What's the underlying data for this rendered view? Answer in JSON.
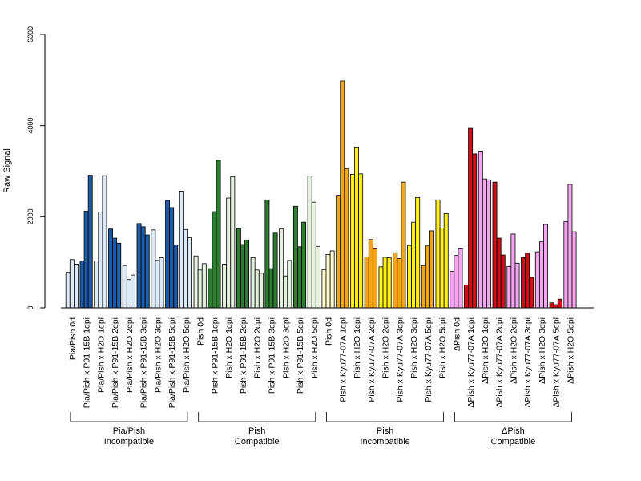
{
  "chart_data": {
    "type": "bar",
    "title": "",
    "xlabel": "",
    "ylabel": "Raw Signal",
    "ylim": [
      0,
      6000
    ],
    "yticks": [
      0,
      2000,
      4000,
      6000
    ],
    "grid": false,
    "colors": {
      "light_blue": "#dce9f7",
      "dark_blue": "#1f5ca8",
      "light_green": "#e5f2e0",
      "dark_green": "#2e7d32",
      "light_yellow": "#fffbcc",
      "orange": "#f5a51a",
      "yellow": "#ffef1e",
      "pink": "#f4a6f0",
      "red": "#d10d16"
    },
    "categories": [
      {
        "label": "Pia/Pish 0d",
        "color": "light_blue",
        "values": [
          780,
          1060,
          960
        ]
      },
      {
        "label": "Pia/Pish x P91-15B 1dpi",
        "color": "dark_blue",
        "values": [
          1030,
          2120,
          2910
        ]
      },
      {
        "label": "Pia/Pish x H2O 1dpi",
        "color": "light_blue",
        "values": [
          1030,
          2100,
          2900
        ]
      },
      {
        "label": "Pia/Pish x P91-15B 2dpi",
        "color": "dark_blue",
        "values": [
          1730,
          1530,
          1420
        ]
      },
      {
        "label": "Pia/Pish x H2O 2dpi",
        "color": "light_blue",
        "values": [
          930,
          620,
          720
        ]
      },
      {
        "label": "Pia/Pish x P91-15B 3dpi",
        "color": "dark_blue",
        "values": [
          1850,
          1780,
          1600
        ]
      },
      {
        "label": "Pia/Pish x H2O 3dpi",
        "color": "light_blue",
        "values": [
          1710,
          1040,
          1100
        ]
      },
      {
        "label": "Pia/Pish x P91-15B 5dpi",
        "color": "dark_blue",
        "values": [
          2360,
          2200,
          1380
        ]
      },
      {
        "label": "Pia/Pish x H2O 5dpi",
        "color": "light_blue",
        "values": [
          2560,
          1720,
          1540
        ]
      },
      {
        "label": "Pish 0d",
        "color": "light_green",
        "values": [
          1140,
          830,
          970
        ]
      },
      {
        "label": "Pish x P91-15B 1dpi",
        "color": "dark_green",
        "values": [
          860,
          2110,
          3240
        ]
      },
      {
        "label": "Pish x H2O 1dpi",
        "color": "light_green",
        "values": [
          960,
          2410,
          2880
        ]
      },
      {
        "label": "Pish x P91-15B 2dpi",
        "color": "dark_green",
        "values": [
          1740,
          1390,
          1490
        ]
      },
      {
        "label": "Pish x H2O 2dpi",
        "color": "light_green",
        "values": [
          1100,
          830,
          760
        ]
      },
      {
        "label": "Pish x P91-15B 3dpi",
        "color": "dark_green",
        "values": [
          2370,
          860,
          1640
        ]
      },
      {
        "label": "Pish x H2O 3dpi",
        "color": "light_green",
        "values": [
          1730,
          700,
          1040
        ]
      },
      {
        "label": "Pish x P91-15B 5dpi",
        "color": "dark_green",
        "values": [
          2230,
          1340,
          1880
        ]
      },
      {
        "label": "Pish x H2O 5dpi",
        "color": "light_green",
        "values": [
          2890,
          2320,
          1350
        ]
      },
      {
        "label": "Pish 0d",
        "color": "light_yellow",
        "values": [
          840,
          1170,
          1250
        ]
      },
      {
        "label": "Pish x Kyu77-07A 1dpi",
        "color": "orange",
        "values": [
          2470,
          4980,
          3050
        ]
      },
      {
        "label": "Pish x H2O 1dpi",
        "color": "yellow",
        "values": [
          2930,
          3530,
          2940
        ]
      },
      {
        "label": "Pish x Kyu77-07A 2dpi",
        "color": "orange",
        "values": [
          1120,
          1500,
          1310
        ]
      },
      {
        "label": "Pish x H2O 2dpi",
        "color": "yellow",
        "values": [
          900,
          1110,
          1100
        ]
      },
      {
        "label": "Pish x Kyu77-07A 3dpi",
        "color": "orange",
        "values": [
          1210,
          1080,
          2760
        ]
      },
      {
        "label": "Pish x H2O 3dpi",
        "color": "yellow",
        "values": [
          1370,
          1880,
          2420
        ]
      },
      {
        "label": "Pish x Kyu77-07A 5dpi",
        "color": "orange",
        "values": [
          930,
          1360,
          1690
        ]
      },
      {
        "label": "Pish x H2O 5dpi",
        "color": "yellow",
        "values": [
          2370,
          1750,
          2070
        ]
      },
      {
        "label": "ΔPish 0d",
        "color": "pink",
        "values": [
          800,
          1150,
          1310
        ]
      },
      {
        "label": "ΔPish x Kyu77-07A 1dpi",
        "color": "red",
        "values": [
          500,
          3940,
          3380
        ]
      },
      {
        "label": "ΔPish x H2O 1dpi",
        "color": "pink",
        "values": [
          3440,
          2830,
          2810
        ]
      },
      {
        "label": "ΔPish x Kyu77-07A 2dpi",
        "color": "red",
        "values": [
          2760,
          1530,
          1160
        ]
      },
      {
        "label": "ΔPish x H2O 2dpi",
        "color": "pink",
        "values": [
          910,
          1620,
          980
        ]
      },
      {
        "label": "ΔPish x Kyu77-07A 3dpi",
        "color": "red",
        "values": [
          1100,
          1200,
          670
        ]
      },
      {
        "label": "ΔPish x H2O 3dpi",
        "color": "pink",
        "values": [
          1230,
          1450,
          1830
        ]
      },
      {
        "label": "ΔPish x Kyu77-07A 5dpi",
        "color": "red",
        "values": [
          110,
          70,
          190
        ]
      },
      {
        "label": "ΔPish x H2O 5dpi",
        "color": "pink",
        "values": [
          1890,
          2710,
          1670
        ]
      }
    ],
    "groups": [
      {
        "line1": "Pia/Pish",
        "line2": "Incompatible",
        "first": 0,
        "last": 8
      },
      {
        "line1": "Pish",
        "line2": "Compatible",
        "first": 9,
        "last": 17
      },
      {
        "line1": "Pish",
        "line2": "Incompatible",
        "first": 18,
        "last": 26
      },
      {
        "line1": "ΔPish",
        "line2": "Compatible",
        "first": 27,
        "last": 35
      }
    ]
  }
}
